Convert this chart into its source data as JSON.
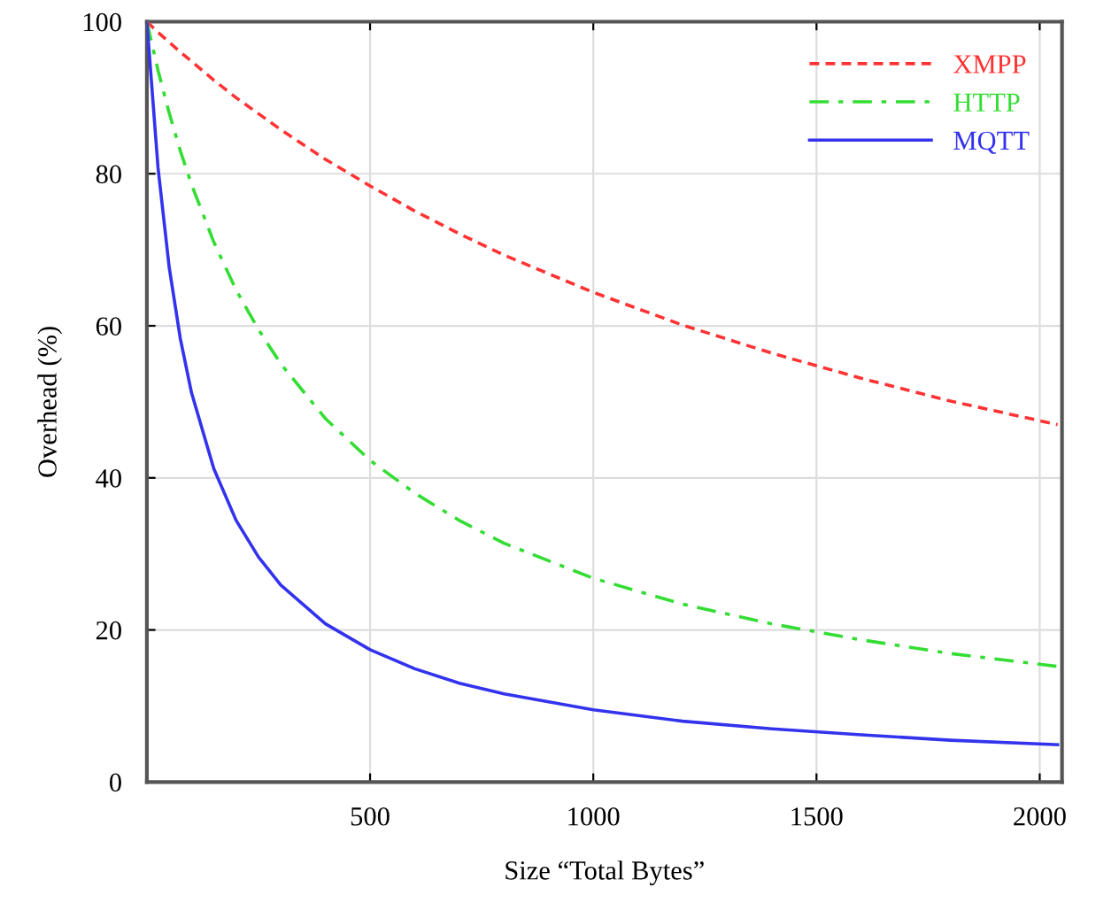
{
  "chart_data": {
    "type": "line",
    "xlabel": "Size “Total Bytes”",
    "ylabel": "Overhead (%)",
    "x": [
      0,
      25,
      50,
      75,
      100,
      150,
      200,
      250,
      300,
      400,
      500,
      600,
      700,
      800,
      1000,
      1200,
      1400,
      1600,
      1800,
      2040
    ],
    "series": [
      {
        "name": "XMPP",
        "color": "#ff3333",
        "line_style": "dashed",
        "values": [
          100,
          98.6,
          97.3,
          96.0,
          94.8,
          92.3,
          90.0,
          87.9,
          85.8,
          81.9,
          78.4,
          75.1,
          72.1,
          69.3,
          64.4,
          60.1,
          56.4,
          53.1,
          50.1,
          47.0
        ]
      },
      {
        "name": "HTTP",
        "color": "#33dd33",
        "line_style": "dashdot",
        "values": [
          100,
          93.6,
          88.0,
          83.0,
          78.6,
          71.0,
          64.7,
          59.5,
          55.0,
          47.8,
          42.3,
          38.0,
          34.4,
          31.4,
          26.8,
          23.4,
          20.8,
          18.7,
          16.9,
          15.2
        ]
      },
      {
        "name": "MQTT",
        "color": "#3333ee",
        "line_style": "solid",
        "values": [
          100,
          80.8,
          67.7,
          58.3,
          51.2,
          41.2,
          34.4,
          29.6,
          25.9,
          20.8,
          17.4,
          14.9,
          13.0,
          11.6,
          9.5,
          8.0,
          7.0,
          6.2,
          5.5,
          4.9
        ]
      }
    ],
    "xlim": [
      0,
      2050
    ],
    "xticks": [
      500,
      1000,
      1500,
      2000
    ],
    "ylim": [
      0,
      100
    ],
    "yticks": [
      0,
      20,
      40,
      60,
      80,
      100
    ],
    "grid": true,
    "legend": "top right",
    "marker": "none"
  }
}
